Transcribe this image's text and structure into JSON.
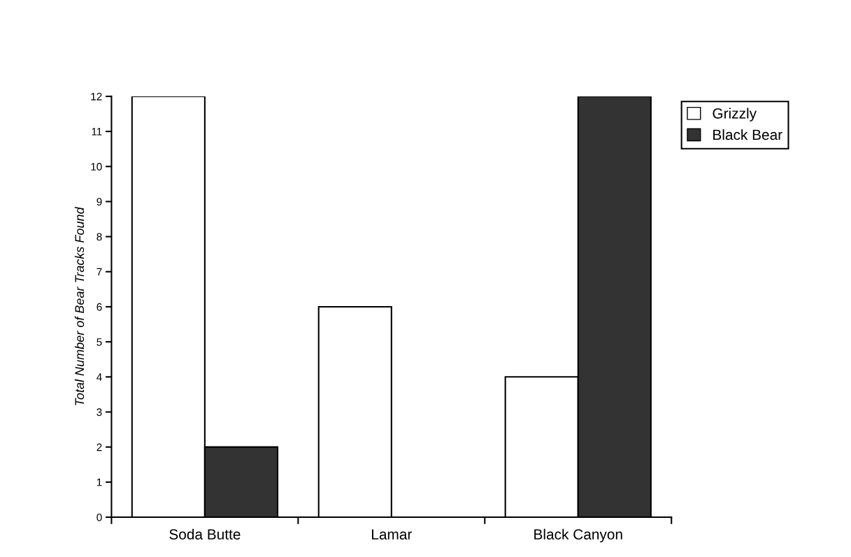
{
  "chart_data": {
    "type": "bar",
    "ylabel": "Total Number of Bear Tracks Found",
    "categories": [
      "Soda Butte",
      "Lamar",
      "Black Canyon"
    ],
    "series": [
      {
        "name": "Grizzly",
        "color": "#ffffff",
        "values": [
          12,
          6,
          4
        ]
      },
      {
        "name": "Black Bear",
        "color": "#333333",
        "values": [
          2,
          0,
          12
        ]
      }
    ],
    "ylim": [
      0,
      12
    ],
    "yticks": [
      0,
      1,
      2,
      3,
      4,
      5,
      6,
      7,
      8,
      9,
      10,
      11,
      12
    ],
    "grid": false,
    "legend": "top right"
  }
}
